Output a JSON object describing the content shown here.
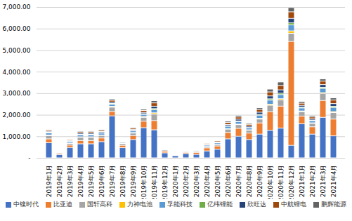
{
  "chart_data": {
    "type": "bar",
    "stacked": true,
    "categories": [
      "2019年1月",
      "2019年2月",
      "2019年3月",
      "2019年4月",
      "2019年5月",
      "2019年6月",
      "2019年7月",
      "2019年8月",
      "2019年9月",
      "2019年10月",
      "2019年11月",
      "2019年12月",
      "2020年1月",
      "2020年2月",
      "2020年3月",
      "2020年4月",
      "2020年5月",
      "2020年6月",
      "2020年7月",
      "2020年8月",
      "2020年9月",
      "2020年10月",
      "2020年11月",
      "2020年12月",
      "2021年1月",
      "2021年2月",
      "2021年3月",
      "2021年4月"
    ],
    "series": [
      {
        "name": "中镍时代",
        "color": "#4472C4",
        "values": [
          700,
          150,
          480,
          650,
          650,
          750,
          1950,
          470,
          850,
          1400,
          1300,
          230,
          100,
          200,
          160,
          320,
          400,
          880,
          1000,
          850,
          1100,
          1280,
          1380,
          580,
          1580,
          1100,
          1880,
          1020
        ]
      },
      {
        "name": "比亚迪",
        "color": "#ED7D31",
        "values": [
          180,
          50,
          110,
          150,
          150,
          170,
          200,
          110,
          180,
          300,
          430,
          80,
          20,
          50,
          90,
          140,
          150,
          300,
          370,
          300,
          520,
          860,
          1020,
          4820,
          360,
          340,
          780,
          780
        ]
      },
      {
        "name": "国轩高科",
        "color": "#A5A5A5",
        "values": [
          150,
          40,
          80,
          150,
          150,
          120,
          200,
          80,
          120,
          180,
          300,
          50,
          30,
          40,
          50,
          60,
          70,
          150,
          170,
          130,
          180,
          300,
          290,
          380,
          200,
          160,
          320,
          300
        ]
      },
      {
        "name": "力神电池",
        "color": "#FFC000",
        "values": [
          30,
          5,
          20,
          30,
          30,
          20,
          40,
          20,
          25,
          40,
          60,
          15,
          5,
          10,
          12,
          12,
          12,
          25,
          25,
          22,
          35,
          50,
          55,
          110,
          35,
          25,
          45,
          45
        ]
      },
      {
        "name": "孚能科技",
        "color": "#5B9BD5",
        "values": [
          100,
          20,
          70,
          90,
          90,
          90,
          100,
          45,
          75,
          95,
          140,
          28,
          10,
          25,
          35,
          55,
          60,
          110,
          120,
          90,
          140,
          190,
          190,
          280,
          140,
          100,
          190,
          190
        ]
      },
      {
        "name": "亿纬锂能",
        "color": "#70AD47",
        "values": [
          30,
          5,
          25,
          25,
          25,
          20,
          35,
          12,
          22,
          32,
          55,
          12,
          5,
          10,
          10,
          10,
          10,
          22,
          28,
          18,
          38,
          58,
          65,
          95,
          38,
          28,
          58,
          58
        ]
      },
      {
        "name": "欣旺达",
        "color": "#264478",
        "values": [
          40,
          10,
          35,
          55,
          55,
          50,
          65,
          22,
          42,
          62,
          110,
          22,
          10,
          22,
          22,
          32,
          32,
          62,
          82,
          62,
          105,
          135,
          155,
          205,
          82,
          62,
          125,
          125
        ]
      },
      {
        "name": "中航锂电",
        "color": "#9E480E",
        "values": [
          55,
          15,
          42,
          62,
          62,
          58,
          82,
          32,
          62,
          92,
          155,
          32,
          10,
          32,
          32,
          42,
          52,
          92,
          102,
          82,
          125,
          185,
          205,
          305,
          102,
          82,
          165,
          165
        ]
      },
      {
        "name": "鹏辉能源",
        "color": "#636363",
        "values": [
          35,
          10,
          32,
          42,
          42,
          42,
          62,
          22,
          42,
          62,
          105,
          22,
          10,
          22,
          22,
          32,
          32,
          62,
          72,
          52,
          82,
          132,
          162,
          202,
          82,
          62,
          102,
          102
        ]
      }
    ],
    "ylim": [
      0,
      7000
    ],
    "yticks": [
      {
        "value": 0,
        "label": "-"
      },
      {
        "value": 1000,
        "label": "1,000.00"
      },
      {
        "value": 2000,
        "label": "2,000.00"
      },
      {
        "value": 3000,
        "label": "3,000.00"
      },
      {
        "value": 4000,
        "label": "4,000.00"
      },
      {
        "value": 5000,
        "label": "5,000.00"
      },
      {
        "value": 6000,
        "label": "6,000.00"
      },
      {
        "value": 7000,
        "label": "7,000.00"
      }
    ],
    "grid": true,
    "legend": "bottom"
  }
}
